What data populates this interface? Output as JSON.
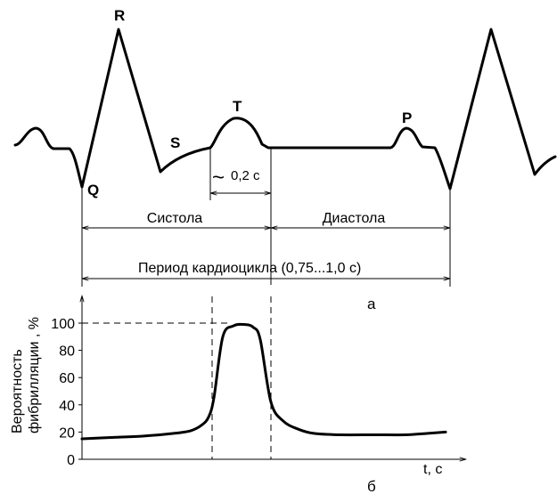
{
  "ecg": {
    "label_r": "R",
    "label_q": "Q",
    "label_s": "S",
    "label_t": "T",
    "label_p": "P",
    "interval_tilde": "~",
    "interval_value": "0,2 с",
    "phase_systole": "Систола",
    "phase_diastole": "Диастола",
    "period_label": "Период кардиоцикла (0,75...1,0 с)",
    "panel_label": "а"
  },
  "probability": {
    "ylabel_line1": "Вероятность",
    "ylabel_line2": "фибрилляции , %",
    "xlabel": "t, с",
    "panel_label": "б"
  },
  "chart_data": {
    "type": "line",
    "title": "",
    "xlabel": "t, с",
    "ylabel": "Вероятность фибрилляции , %",
    "ylim": [
      0,
      100
    ],
    "yticks": [
      0,
      20,
      40,
      60,
      80,
      100
    ],
    "reference_lines": [
      "horizontal dashed line at 100",
      "vertical dashed lines at start and end of T wave"
    ],
    "series": [
      {
        "y_values": [
          15,
          16,
          17,
          19,
          21,
          25,
          31,
          45,
          90,
          98,
          99,
          97,
          88,
          42,
          28,
          22,
          19,
          18,
          18,
          18,
          19,
          20
        ]
      }
    ]
  }
}
